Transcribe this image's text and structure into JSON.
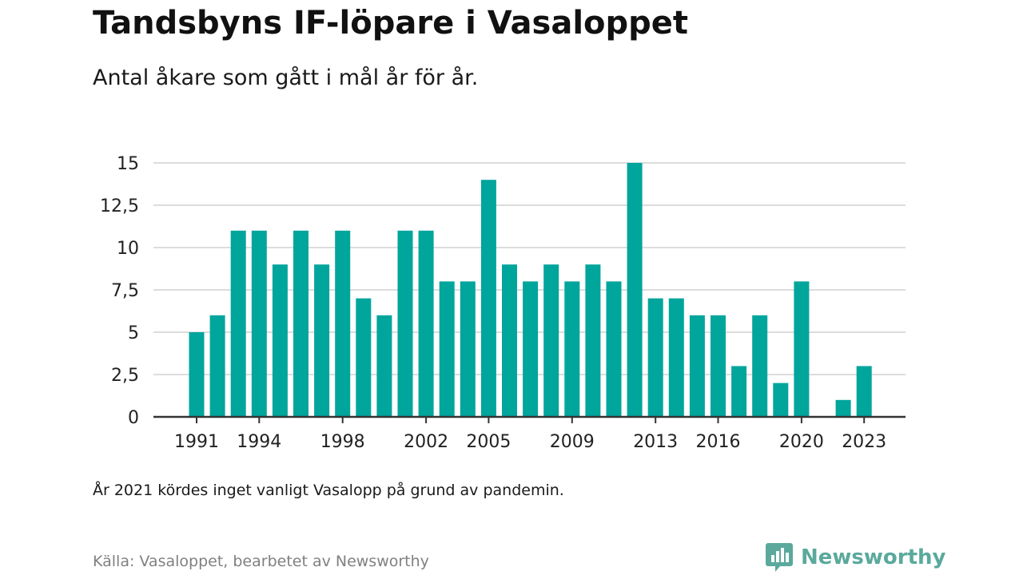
{
  "header": {
    "title": "Tandsbyns IF-löpare i Vasaloppet",
    "subtitle": "Antal åkare som gått i mål år för år."
  },
  "footer": {
    "note": "År 2021 kördes inget vanligt Vasalopp på grund av pandemin.",
    "source": "Källa: Vasaloppet, bearbetet av Newsworthy",
    "brand": "Newsworthy"
  },
  "colors": {
    "bar": "#00a59c",
    "grid": "#dcdcdc",
    "axis": "#333333",
    "brand": "#5aa99c"
  },
  "icons": {
    "brand": "newsworthy-logo-icon"
  },
  "chart_data": {
    "type": "bar",
    "title": "Tandsbyns IF-löpare i Vasaloppet",
    "subtitle": "Antal åkare som gått i mål år för år.",
    "categories": [
      1991,
      1992,
      1993,
      1994,
      1995,
      1996,
      1997,
      1998,
      1999,
      2000,
      2001,
      2002,
      2003,
      2004,
      2005,
      2006,
      2007,
      2008,
      2009,
      2010,
      2011,
      2012,
      2013,
      2014,
      2015,
      2016,
      2017,
      2018,
      2019,
      2020,
      2021,
      2022,
      2023
    ],
    "values": [
      5,
      6,
      11,
      11,
      9,
      11,
      9,
      11,
      7,
      6,
      11,
      11,
      8,
      8,
      14,
      9,
      8,
      9,
      8,
      9,
      8,
      15,
      7,
      7,
      6,
      6,
      3,
      6,
      2,
      8,
      null,
      1,
      3
    ],
    "x_tick_labels": [
      "1991",
      "1994",
      "1998",
      "2002",
      "2005",
      "2009",
      "2013",
      "2016",
      "2020",
      "2023"
    ],
    "y_ticks": [
      0,
      2.5,
      5,
      7.5,
      10,
      12.5,
      15
    ],
    "y_tick_labels": [
      "0",
      "2,5",
      "5",
      "7,5",
      "10",
      "12,5",
      "15"
    ],
    "ylim": [
      0,
      15
    ],
    "grid": true,
    "legend": false
  }
}
